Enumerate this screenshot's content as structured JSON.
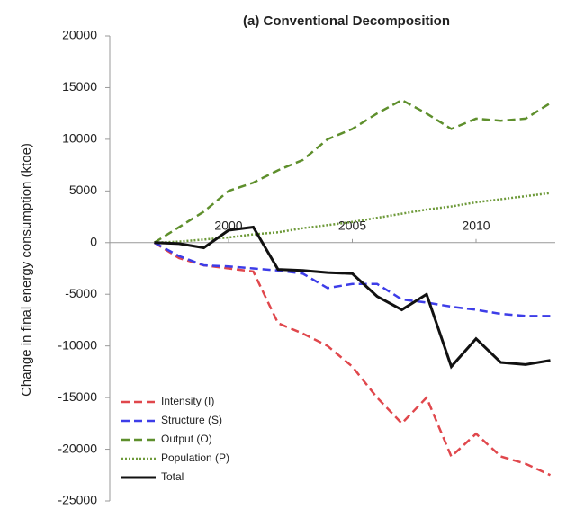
{
  "chart_data": {
    "type": "line",
    "title": "(a) Conventional Decomposition",
    "ylabel": "Change in final energy consumption (ktoe)",
    "x": [
      1997,
      1998,
      1999,
      2000,
      2001,
      2002,
      2003,
      2004,
      2005,
      2006,
      2007,
      2008,
      2009,
      2010,
      2011,
      2012,
      2013
    ],
    "series": [
      {
        "name": "Intensity (I)",
        "color": "#e0474c",
        "dash": "dashed",
        "values": [
          0,
          -1500,
          -2200,
          -2500,
          -2800,
          -7800,
          -8800,
          -10000,
          -12000,
          -15000,
          -17500,
          -15000,
          -20700,
          -18500,
          -20700,
          -21400,
          -22500
        ]
      },
      {
        "name": "Structure (S)",
        "color": "#3d3de8",
        "dash": "dashed",
        "values": [
          0,
          -1300,
          -2200,
          -2300,
          -2500,
          -2700,
          -3000,
          -4400,
          -4000,
          -4000,
          -5500,
          -5800,
          -6200,
          -6500,
          -6900,
          -7100,
          -7100
        ]
      },
      {
        "name": "Output (O)",
        "color": "#5e8f2c",
        "dash": "dashed",
        "values": [
          0,
          1500,
          3000,
          5000,
          5800,
          7000,
          8000,
          10000,
          11000,
          12500,
          13800,
          12500,
          11000,
          12000,
          11800,
          12000,
          13500
        ]
      },
      {
        "name": "Population (P)",
        "color": "#6e9a3a",
        "dash": "dotted",
        "values": [
          0,
          100,
          300,
          500,
          800,
          1000,
          1400,
          1700,
          2000,
          2400,
          2800,
          3200,
          3500,
          3900,
          4200,
          4500,
          4800
        ]
      },
      {
        "name": "Total",
        "color": "#111111",
        "dash": "solid",
        "values": [
          0,
          -100,
          -500,
          1200,
          1500,
          -2600,
          -2700,
          -2900,
          -3000,
          -5200,
          -6500,
          -5000,
          -12000,
          -9300,
          -11600,
          -11800,
          -11400
        ]
      }
    ],
    "xlim": [
      1995.2,
      2013.2
    ],
    "xticks": [
      2000,
      2005,
      2010
    ],
    "ylim": [
      -25000,
      20000
    ],
    "yticks": [
      -25000,
      -20000,
      -15000,
      -10000,
      -5000,
      0,
      5000,
      10000,
      15000,
      20000
    ],
    "legend": "lower left"
  }
}
